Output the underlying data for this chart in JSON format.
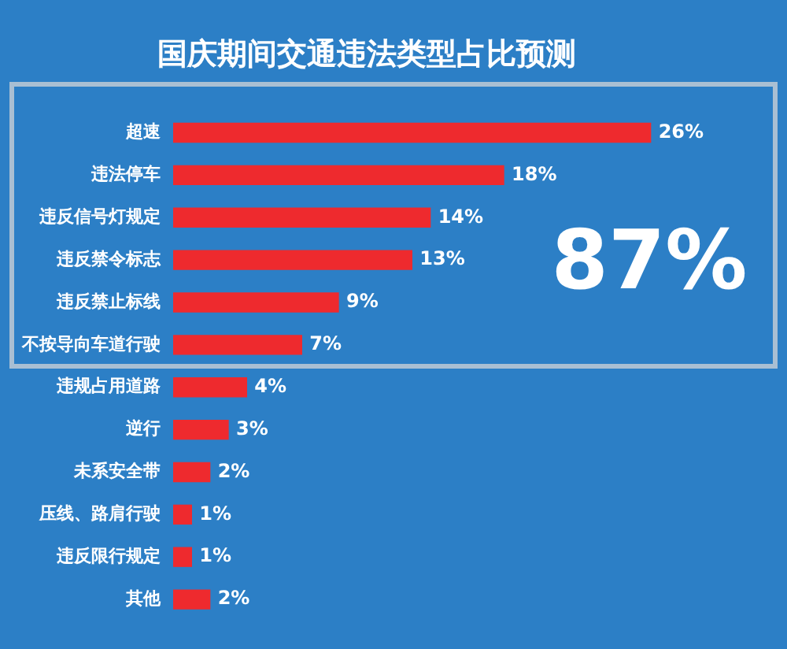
{
  "chart_data": {
    "type": "bar",
    "orientation": "horizontal",
    "title": "国庆期间交通违法类型占比预测",
    "categories": [
      "超速",
      "违法停车",
      "违反信号灯规定",
      "违反禁令标志",
      "违反禁止标线",
      "不按导向车道行驶",
      "违规占用道路",
      "逆行",
      "未系安全带",
      "压线、路肩行驶",
      "违反限行规定",
      "其他"
    ],
    "values": [
      26,
      18,
      14,
      13,
      9,
      7,
      4,
      3,
      2,
      1,
      1,
      2
    ],
    "value_labels": [
      "26%",
      "18%",
      "14%",
      "13%",
      "9%",
      "7%",
      "4%",
      "3%",
      "2%",
      "1%",
      "1%",
      "2%"
    ],
    "color": "#ee2a2e",
    "annotations": [
      "87%"
    ],
    "grid": false,
    "legend": false
  }
}
